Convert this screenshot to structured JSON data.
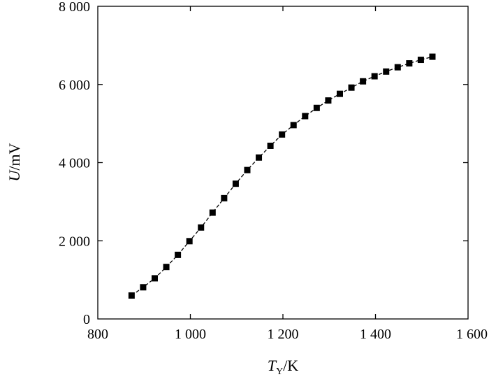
{
  "chart_data": {
    "type": "scatter",
    "title": "",
    "xlabel": {
      "var": "T",
      "sub": "Y",
      "unit": "/K"
    },
    "ylabel": {
      "var": "U",
      "unit": "/mV"
    },
    "xlim": [
      800,
      1600
    ],
    "ylim": [
      0,
      8000
    ],
    "xticks": [
      800,
      1000,
      1200,
      1400,
      1600
    ],
    "yticks": [
      0,
      2000,
      4000,
      6000,
      8000
    ],
    "xtick_labels": [
      "800",
      "1 000",
      "1 200",
      "1 400",
      "1 600"
    ],
    "ytick_labels": [
      "0",
      "2 000",
      "4 000",
      "6 000",
      "8 000"
    ],
    "grid": false,
    "legend": "none",
    "marker": "square",
    "line_style": "dashed",
    "colors": {
      "series": "#000000",
      "background": "#ffffff"
    },
    "series": [
      {
        "x": [
          873,
          898,
          923,
          948,
          973,
          998,
          1023,
          1048,
          1073,
          1098,
          1123,
          1148,
          1173,
          1198,
          1223,
          1248,
          1273,
          1298,
          1323,
          1348,
          1373,
          1398,
          1423,
          1448,
          1473,
          1498,
          1523
        ],
        "values": [
          600,
          810,
          1040,
          1330,
          1640,
          1990,
          2340,
          2720,
          3090,
          3460,
          3810,
          4130,
          4430,
          4720,
          4960,
          5190,
          5400,
          5590,
          5760,
          5920,
          6080,
          6210,
          6330,
          6440,
          6540,
          6630,
          6710
        ]
      }
    ]
  }
}
